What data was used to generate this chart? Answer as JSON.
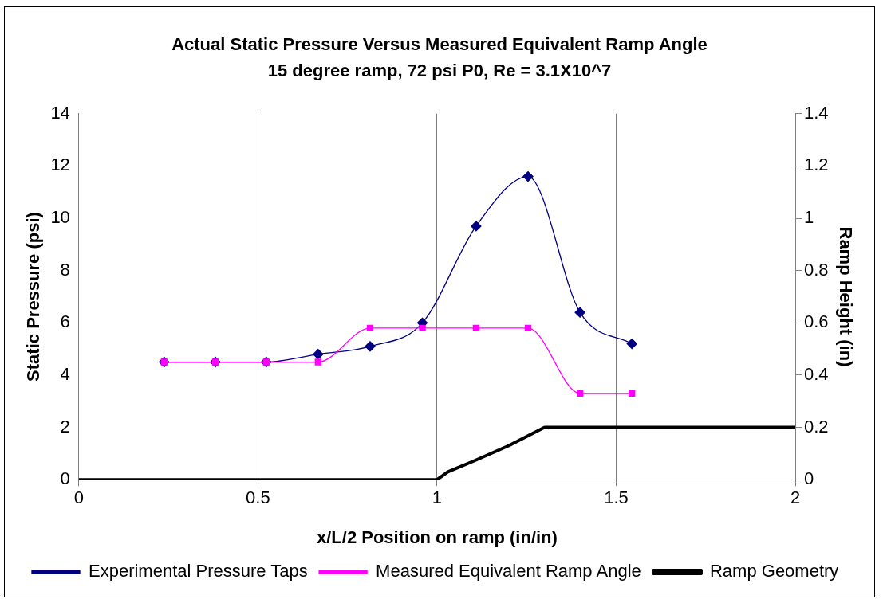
{
  "chart_data": {
    "type": "line",
    "title": "Actual Static Pressure Versus Measured Equivalent Ramp Angle",
    "subtitle": "15 degree ramp, 72 psi P0, Re = 3.1X10^7",
    "xlabel": "x/L/2 Position on ramp (in/in)",
    "ylabel": "Static Pressure (psi)",
    "y2label": "Ramp Height (in)",
    "xlim": [
      0,
      2
    ],
    "xticks": [
      0,
      0.5,
      1,
      1.5,
      2
    ],
    "ylim": [
      0,
      14
    ],
    "yticks": [
      0,
      2,
      4,
      6,
      8,
      10,
      12,
      14
    ],
    "y2lim": [
      0,
      1.4
    ],
    "y2ticks": [
      0,
      0.2,
      0.4,
      0.6,
      0.8,
      1,
      1.2,
      1.4
    ],
    "grid": "x",
    "legend": "bottom",
    "series": [
      {
        "name": "Experimental Pressure Taps",
        "color": "#000080",
        "marker": "diamond",
        "x": [
          0.238,
          0.381,
          0.523,
          0.668,
          0.813,
          0.959,
          1.109,
          1.254,
          1.399,
          1.544
        ],
        "values": [
          4.5,
          4.5,
          4.5,
          4.8,
          5.1,
          6.0,
          9.7,
          11.6,
          6.4,
          5.2
        ]
      },
      {
        "name": "Measured Equivalent Ramp Angle",
        "color": "#ff00ff",
        "marker": "square",
        "x": [
          0.238,
          0.381,
          0.523,
          0.668,
          0.813,
          0.959,
          1.109,
          1.254,
          1.399,
          1.544
        ],
        "values": [
          4.5,
          4.5,
          4.5,
          4.5,
          5.8,
          5.8,
          5.8,
          5.8,
          3.3,
          3.3
        ]
      },
      {
        "name": "Ramp Geometry",
        "color": "#000000",
        "marker": "none",
        "axis": "y2",
        "x": [
          0,
          1,
          1.03,
          1.1,
          1.2,
          1.3,
          2
        ],
        "values": [
          0,
          0,
          0.03,
          0.07,
          0.13,
          0.2,
          0.2
        ]
      }
    ]
  }
}
